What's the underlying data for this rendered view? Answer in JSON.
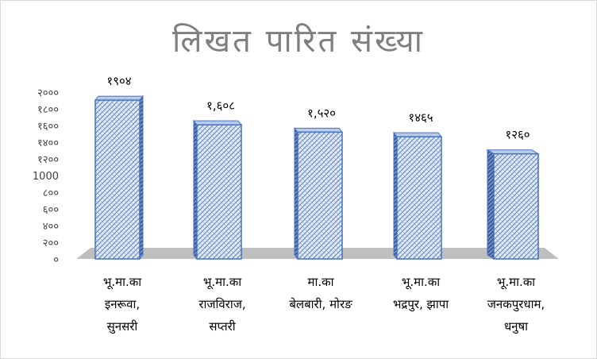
{
  "chart_data": {
    "type": "bar",
    "title": "लिखत पारित संख्या",
    "categories": [
      [
        "भू.मा.का",
        "इनरूवा,",
        "सुनसरी"
      ],
      [
        "भू.मा.का",
        "राजविराज,",
        "सप्तरी"
      ],
      [
        "मा.का",
        "बेलबारी, मोरङ"
      ],
      [
        "भू.मा.का",
        "भद्रपुर, झापा"
      ],
      [
        "भू.मा.का",
        "जनकपुरधाम,",
        "धनुषा"
      ]
    ],
    "values": [
      1904,
      1608,
      1520,
      1465,
      1260
    ],
    "data_labels": [
      "१९०४",
      "१,६०८",
      "१,५२०",
      "१४६५",
      "१२६०"
    ],
    "yticks": [
      0,
      200,
      400,
      600,
      800,
      1000,
      1200,
      1400,
      1600,
      1800,
      2000
    ],
    "ytick_labels": [
      "०",
      "२००",
      "४००",
      "६००",
      "८००",
      "1000",
      "१२००",
      "१४००",
      "१६००",
      "१८००",
      "२०००"
    ],
    "ylim": [
      0,
      2000
    ],
    "grid": false,
    "legend": "none",
    "colors": {
      "bar_fill": "#dbe5f4",
      "bar_pattern": "#4472c4",
      "bar_edge": "#4472c4",
      "floor": "#bfbfbf",
      "title": "#7f7f7f"
    }
  }
}
